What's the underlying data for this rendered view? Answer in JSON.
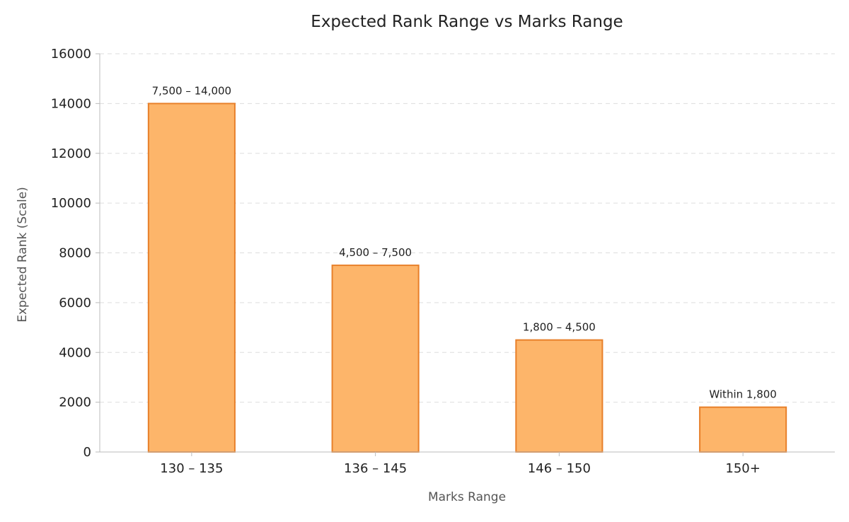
{
  "chart_data": {
    "type": "bar",
    "title": "Expected Rank Range vs Marks Range",
    "xlabel": "Marks Range",
    "ylabel": "Expected Rank (Scale)",
    "categories": [
      "130 – 135",
      "136 – 145",
      "146 – 150",
      "150+"
    ],
    "values": [
      14000,
      7500,
      4500,
      1800
    ],
    "data_labels": [
      "7,500 – 14,000",
      "4,500 – 7,500",
      "1,800 – 4,500",
      "Within 1,800"
    ],
    "ylim": [
      0,
      16000
    ],
    "yticks": [
      0,
      2000,
      4000,
      6000,
      8000,
      10000,
      12000,
      14000,
      16000
    ],
    "grid": true,
    "colors": {
      "bar_fill": "#FDB56A",
      "bar_stroke": "#E8802A",
      "grid": "#DDDDDD",
      "axis": "#BBBBBB"
    }
  }
}
